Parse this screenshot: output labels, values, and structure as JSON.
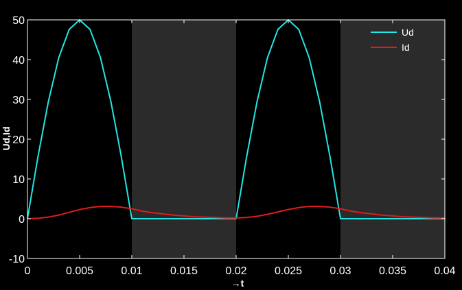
{
  "chart_data": {
    "type": "line",
    "title": "",
    "xlabel": "→t",
    "ylabel": "Ud,Id",
    "xlim": [
      0,
      0.04
    ],
    "ylim": [
      -10,
      50
    ],
    "x_ticks": [
      "0",
      "0.005",
      "0.01",
      "0.015",
      "0.02",
      "0.025",
      "0.03",
      "0.035",
      "0.04"
    ],
    "y_ticks": [
      "-10",
      "0",
      "10",
      "20",
      "30",
      "40",
      "50"
    ],
    "grid": false,
    "legend_position": "top-right",
    "background_color": "#000000",
    "axis_color": "#ffffff",
    "shaded_color": "#2b2b2b",
    "shaded_intervals": [
      [
        0.01,
        0.02
      ],
      [
        0.03,
        0.04
      ]
    ],
    "series": [
      {
        "name": "Ud",
        "color": "#22e6e6",
        "x": [
          0,
          0.001,
          0.002,
          0.003,
          0.004,
          0.005,
          0.006,
          0.007,
          0.008,
          0.009,
          0.01,
          0.011,
          0.012,
          0.013,
          0.014,
          0.015,
          0.016,
          0.017,
          0.018,
          0.019,
          0.02,
          0.021,
          0.022,
          0.023,
          0.024,
          0.025,
          0.026,
          0.027,
          0.028,
          0.029,
          0.03,
          0.031,
          0.032,
          0.033,
          0.034,
          0.035,
          0.036,
          0.037,
          0.038,
          0.039,
          0.04
        ],
        "values": [
          0,
          15.5,
          29.4,
          40.5,
          47.6,
          50,
          47.6,
          40.5,
          29.4,
          15.5,
          0,
          0,
          0,
          0,
          0,
          0,
          0,
          0,
          0,
          0,
          0,
          15.5,
          29.4,
          40.5,
          47.6,
          50,
          47.6,
          40.5,
          29.4,
          15.5,
          0,
          0,
          0,
          0,
          0,
          0,
          0,
          0,
          0,
          0,
          0
        ]
      },
      {
        "name": "Id",
        "color": "#e21b1b",
        "x": [
          0,
          0.001,
          0.002,
          0.003,
          0.004,
          0.005,
          0.006,
          0.007,
          0.008,
          0.009,
          0.01,
          0.011,
          0.012,
          0.013,
          0.014,
          0.015,
          0.016,
          0.017,
          0.018,
          0.019,
          0.02,
          0.021,
          0.022,
          0.023,
          0.024,
          0.025,
          0.026,
          0.027,
          0.028,
          0.029,
          0.03,
          0.031,
          0.032,
          0.033,
          0.034,
          0.035,
          0.036,
          0.037,
          0.038,
          0.039,
          0.04
        ],
        "values": [
          0,
          0.1,
          0.4,
          0.9,
          1.6,
          2.3,
          2.8,
          3.1,
          3.1,
          2.9,
          2.5,
          1.9,
          1.5,
          1.2,
          0.9,
          0.7,
          0.5,
          0.4,
          0.3,
          0.2,
          0.2,
          0.3,
          0.6,
          1.1,
          1.7,
          2.3,
          2.8,
          3.1,
          3.1,
          2.9,
          2.5,
          1.9,
          1.5,
          1.2,
          0.9,
          0.7,
          0.5,
          0.4,
          0.3,
          0.2,
          0.2
        ]
      }
    ]
  }
}
